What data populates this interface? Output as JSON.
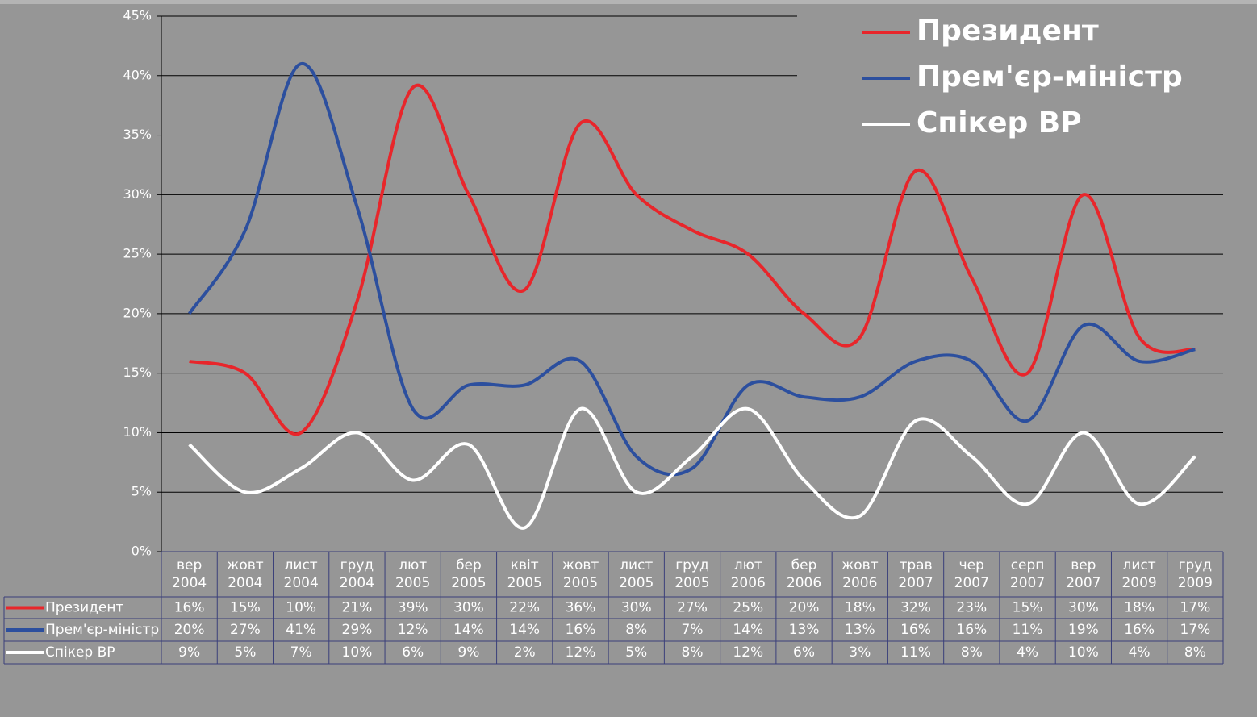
{
  "chart_data": {
    "type": "line",
    "categories": [
      "вер 2004",
      "жовт 2004",
      "лист 2004",
      "груд 2004",
      "лют 2005",
      "бер 2005",
      "квіт 2005",
      "жовт 2005",
      "лист 2005",
      "груд 2005",
      "лют 2006",
      "бер 2006",
      "жовт 2006",
      "трав 2007",
      "чер 2007",
      "серп 2007",
      "вер 2007",
      "лист 2009",
      "груд 2009"
    ],
    "series": [
      {
        "name": "Президент",
        "color": "#e8262b",
        "values": [
          16,
          15,
          10,
          21,
          39,
          30,
          22,
          36,
          30,
          27,
          25,
          20,
          18,
          32,
          23,
          15,
          30,
          18,
          17
        ],
        "value_labels": [
          "16%",
          "15%",
          "10%",
          "21%",
          "39%",
          "30%",
          "22%",
          "36%",
          "30%",
          "27%",
          "25%",
          "20%",
          "18%",
          "32%",
          "23%",
          "15%",
          "30%",
          "18%",
          "17%"
        ]
      },
      {
        "name": "Прем'єр-міністр",
        "color": "#2c4f9e",
        "values": [
          20,
          27,
          41,
          29,
          12,
          14,
          14,
          16,
          8,
          7,
          14,
          13,
          13,
          16,
          16,
          11,
          19,
          16,
          17
        ],
        "value_labels": [
          "20%",
          "27%",
          "41%",
          "29%",
          "12%",
          "14%",
          "14%",
          "16%",
          "8%",
          "7%",
          "14%",
          "13%",
          "13%",
          "16%",
          "16%",
          "11%",
          "19%",
          "16%",
          "17%"
        ]
      },
      {
        "name": "Спікер ВР",
        "color": "#ffffff",
        "values": [
          9,
          5,
          7,
          10,
          6,
          9,
          2,
          12,
          5,
          8,
          12,
          6,
          3,
          11,
          8,
          4,
          10,
          4,
          8
        ],
        "value_labels": [
          "9%",
          "5%",
          "7%",
          "10%",
          "6%",
          "9%",
          "2%",
          "12%",
          "5%",
          "8%",
          "12%",
          "6%",
          "3%",
          "11%",
          "8%",
          "4%",
          "10%",
          "4%",
          "8%"
        ]
      }
    ],
    "ylim": [
      0,
      45
    ],
    "yticks": [
      {
        "value": 0,
        "label": "0%"
      },
      {
        "value": 5,
        "label": "5%"
      },
      {
        "value": 10,
        "label": "10%"
      },
      {
        "value": 15,
        "label": "15%"
      },
      {
        "value": 20,
        "label": "20%"
      },
      {
        "value": 25,
        "label": "25%"
      },
      {
        "value": 30,
        "label": "30%"
      },
      {
        "value": 35,
        "label": "35%"
      },
      {
        "value": 40,
        "label": "40%"
      },
      {
        "value": 45,
        "label": "45%"
      }
    ],
    "grid": true,
    "legend": "top-right"
  }
}
